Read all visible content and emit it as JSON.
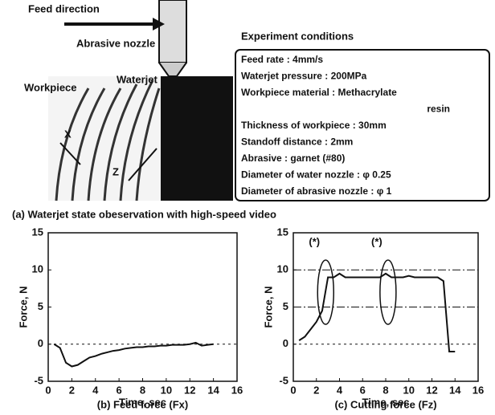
{
  "figure": {
    "labels": {
      "feed_direction": "Feed direction",
      "nozzle": "Abrasive nozzle",
      "waterjet": "Waterjet",
      "workpiece": "Workpiece",
      "x_axis": "X",
      "z_axis": "Z"
    },
    "conditions": {
      "title": "Experiment conditions",
      "lines": [
        "Feed rate : 4mm/s",
        "Waterjet pressure : 200MPa",
        "Workpiece material : Methacrylate",
        "resin",
        "Thickness of workpiece : 30mm",
        "Standoff distance : 2mm",
        "Abrasive : garnet (#80)",
        "Diameter of water nozzle : φ 0.25",
        "Diameter of abrasive nozzle : φ 1"
      ]
    },
    "caption": "(a)  Waterjet state obeservation with high-speed video"
  },
  "chart_data": [
    {
      "type": "line",
      "caption": "(b)  Feed force (Fx)",
      "xlabel": "Time, sec",
      "ylabel": "Force, N",
      "x": [
        0.5,
        1,
        1.5,
        2,
        2.5,
        3,
        3.5,
        4,
        4.5,
        5,
        5.5,
        6,
        6.5,
        7,
        7.5,
        8,
        8.5,
        9,
        9.5,
        10,
        10.5,
        11,
        11.5,
        12,
        12.5,
        13,
        13.5,
        14
      ],
      "series": [
        {
          "color": "#111111",
          "values": [
            0,
            -0.5,
            -2.5,
            -3,
            -2.8,
            -2.3,
            -1.8,
            -1.6,
            -1.3,
            -1.1,
            -0.9,
            -0.8,
            -0.6,
            -0.5,
            -0.4,
            -0.4,
            -0.3,
            -0.3,
            -0.2,
            -0.2,
            -0.1,
            -0.1,
            -0.1,
            0,
            0.2,
            -0.2,
            -0.1,
            0
          ]
        }
      ],
      "xlim": [
        0,
        16
      ],
      "xticks": [
        0,
        2,
        4,
        6,
        8,
        10,
        12,
        14,
        16
      ],
      "ylim": [
        -5,
        15
      ],
      "yticks": [
        -5,
        0,
        5,
        10,
        15
      ],
      "reference_lines": [
        0
      ]
    },
    {
      "type": "line",
      "caption": "(c)  Cutting force (Fz)",
      "xlabel": "Time, sec",
      "ylabel": "Force, N",
      "x": [
        0.5,
        1,
        1.5,
        2,
        2.5,
        3,
        3.5,
        4,
        4.5,
        5,
        5.5,
        6,
        6.5,
        7,
        7.5,
        8,
        8.5,
        9,
        9.5,
        10,
        10.5,
        11,
        11.5,
        12,
        12.5,
        13,
        13.5,
        14
      ],
      "series": [
        {
          "color": "#111111",
          "values": [
            0.5,
            1,
            2,
            3,
            4.5,
            9,
            9,
            9.5,
            9,
            9,
            9,
            9,
            9,
            9,
            9,
            9.5,
            9,
            9,
            9,
            9.2,
            9,
            9,
            9,
            9,
            9,
            8.5,
            -1,
            -1
          ]
        }
      ],
      "xlim": [
        0,
        16
      ],
      "xticks": [
        0,
        2,
        4,
        6,
        8,
        10,
        12,
        14,
        16
      ],
      "ylim": [
        -5,
        15
      ],
      "yticks": [
        -5,
        0,
        5,
        10,
        15
      ],
      "reference_lines": [
        0,
        5,
        10
      ],
      "highlights": [
        {
          "label": "(*)",
          "x": 2.8
        },
        {
          "label": "(*)",
          "x": 8.2
        }
      ]
    }
  ]
}
